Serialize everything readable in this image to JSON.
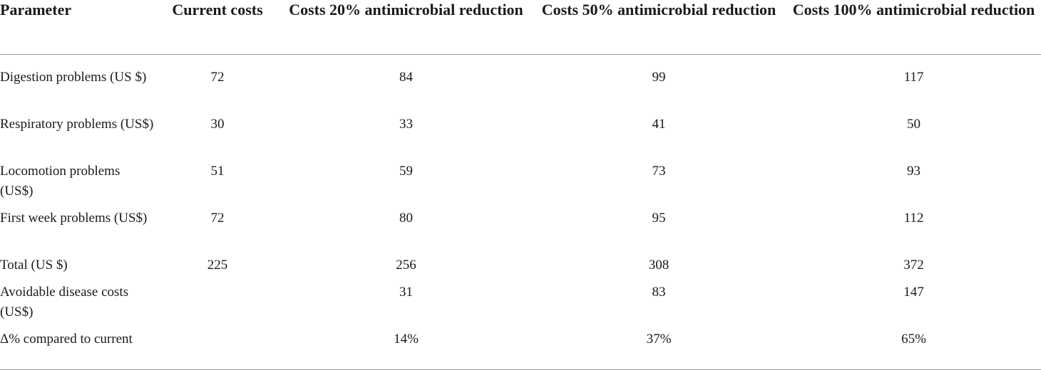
{
  "table": {
    "headers": [
      "Parameter",
      "Current costs",
      "Costs 20% antimicrobial reduction",
      "Costs 50% antimicrobial reduction",
      "Costs 100% antimicrobial reduction"
    ],
    "rows": [
      [
        "Digestion problems (US $)",
        "72",
        "84",
        "99",
        "117"
      ],
      [
        "Respiratory problems (US$)",
        "30",
        "33",
        "41",
        "50"
      ],
      [
        "Locomotion problems (US$)",
        "51",
        "59",
        "73",
        "93"
      ],
      [
        "First week problems (US$)",
        "72",
        "80",
        "95",
        "112"
      ],
      [
        "Total (US $)",
        "225",
        "256",
        "308",
        "372"
      ],
      [
        "Avoidable disease costs (US$)",
        "",
        "31",
        "83",
        "147"
      ],
      [
        "Δ% compared to current",
        "",
        "14%",
        "37%",
        "65%"
      ]
    ]
  }
}
